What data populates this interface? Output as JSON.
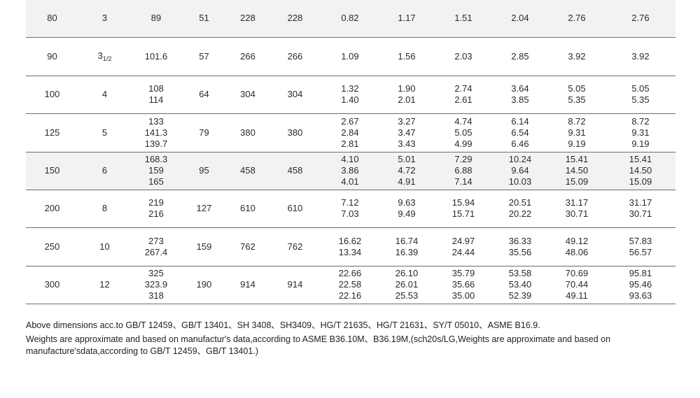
{
  "rows": [
    {
      "dn": "80",
      "nps": "3",
      "nps_sub": "",
      "od": [
        "89"
      ],
      "a": "51",
      "b": "228",
      "c": "228",
      "w1": [
        "0.82"
      ],
      "w2": [
        "1.17"
      ],
      "w3": [
        "1.51"
      ],
      "w4": [
        "2.04"
      ],
      "w5": [
        "2.76"
      ],
      "w6": [
        "2.76"
      ],
      "shade": true
    },
    {
      "dn": "90",
      "nps": "3",
      "nps_sub": "1/2",
      "od": [
        "101.6"
      ],
      "a": "57",
      "b": "266",
      "c": "266",
      "w1": [
        "1.09"
      ],
      "w2": [
        "1.56"
      ],
      "w3": [
        "2.03"
      ],
      "w4": [
        "2.85"
      ],
      "w5": [
        "3.92"
      ],
      "w6": [
        "3.92"
      ],
      "shade": false
    },
    {
      "dn": "100",
      "nps": "4",
      "nps_sub": "",
      "od": [
        "108",
        "114"
      ],
      "a": "64",
      "b": "304",
      "c": "304",
      "w1": [
        "1.32",
        "1.40"
      ],
      "w2": [
        "1.90",
        "2.01"
      ],
      "w3": [
        "2.74",
        "2.61"
      ],
      "w4": [
        "3.64",
        "3.85"
      ],
      "w5": [
        "5.05",
        "5.35"
      ],
      "w6": [
        "5.05",
        "5.35"
      ],
      "shade": false
    },
    {
      "dn": "125",
      "nps": "5",
      "nps_sub": "",
      "od": [
        "133",
        "141.3",
        "139.7"
      ],
      "a": "79",
      "b": "380",
      "c": "380",
      "w1": [
        "2.67",
        "2.84",
        "2.81"
      ],
      "w2": [
        "3.27",
        "3.47",
        "3.43"
      ],
      "w3": [
        "4.74",
        "5.05",
        "4.99"
      ],
      "w4": [
        "6.14",
        "6.54",
        "6.46"
      ],
      "w5": [
        "8.72",
        "9.31",
        "9.19"
      ],
      "w6": [
        "8.72",
        "9.31",
        "9.19"
      ],
      "shade": false
    },
    {
      "dn": "150",
      "nps": "6",
      "nps_sub": "",
      "od": [
        "168.3",
        "159",
        "165"
      ],
      "a": "95",
      "b": "458",
      "c": "458",
      "w1": [
        "4.10",
        "3.86",
        "4.01"
      ],
      "w2": [
        "5.01",
        "4.72",
        "4.91"
      ],
      "w3": [
        "7.29",
        "6.88",
        "7.14"
      ],
      "w4": [
        "10.24",
        "9.64",
        "10.03"
      ],
      "w5": [
        "15.41",
        "14.50",
        "15.09"
      ],
      "w6": [
        "15.41",
        "14.50",
        "15.09"
      ],
      "shade": true
    },
    {
      "dn": "200",
      "nps": "8",
      "nps_sub": "",
      "od": [
        "219",
        "216"
      ],
      "a": "127",
      "b": "610",
      "c": "610",
      "w1": [
        "7.12",
        "7.03"
      ],
      "w2": [
        "9.63",
        "9.49"
      ],
      "w3": [
        "15.94",
        "15.71"
      ],
      "w4": [
        "20.51",
        "20.22"
      ],
      "w5": [
        "31.17",
        "30.71"
      ],
      "w6": [
        "31.17",
        "30.71"
      ],
      "shade": false
    },
    {
      "dn": "250",
      "nps": "10",
      "nps_sub": "",
      "od": [
        "273",
        "267.4"
      ],
      "a": "159",
      "b": "762",
      "c": "762",
      "w1": [
        "16.62",
        "13.34"
      ],
      "w2": [
        "16.74",
        "16.39"
      ],
      "w3": [
        "24.97",
        "24.44"
      ],
      "w4": [
        "36.33",
        "35.56"
      ],
      "w5": [
        "49.12",
        "48.06"
      ],
      "w6": [
        "57.83",
        "56.57"
      ],
      "shade": false
    },
    {
      "dn": "300",
      "nps": "12",
      "nps_sub": "",
      "od": [
        "325",
        "323.9",
        "318"
      ],
      "a": "190",
      "b": "914",
      "c": "914",
      "w1": [
        "22.66",
        "22.58",
        "22.16"
      ],
      "w2": [
        "26.10",
        "26.01",
        "25.53"
      ],
      "w3": [
        "35.79",
        "35.66",
        "35.00"
      ],
      "w4": [
        "53.58",
        "53.40",
        "52.39"
      ],
      "w5": [
        "70.69",
        "70.44",
        "49.11"
      ],
      "w6": [
        "95.81",
        "95.46",
        "93.63"
      ],
      "shade": false
    }
  ],
  "notes": {
    "line1": "Above dimensions acc.to GB/T 12459、GB/T 13401、SH 3408、SH3409、HG/T 21635、HG/T 21631、SY/T 05010、ASME B16.9.",
    "line2": "Weights are approximate and based on manufactur's data,according to ASME B36.10M、B36.19M,(sch20s/LG,Weights are approximate and based on manufacture'sdata,according to GB/T 12459、GB/T 13401.)"
  }
}
